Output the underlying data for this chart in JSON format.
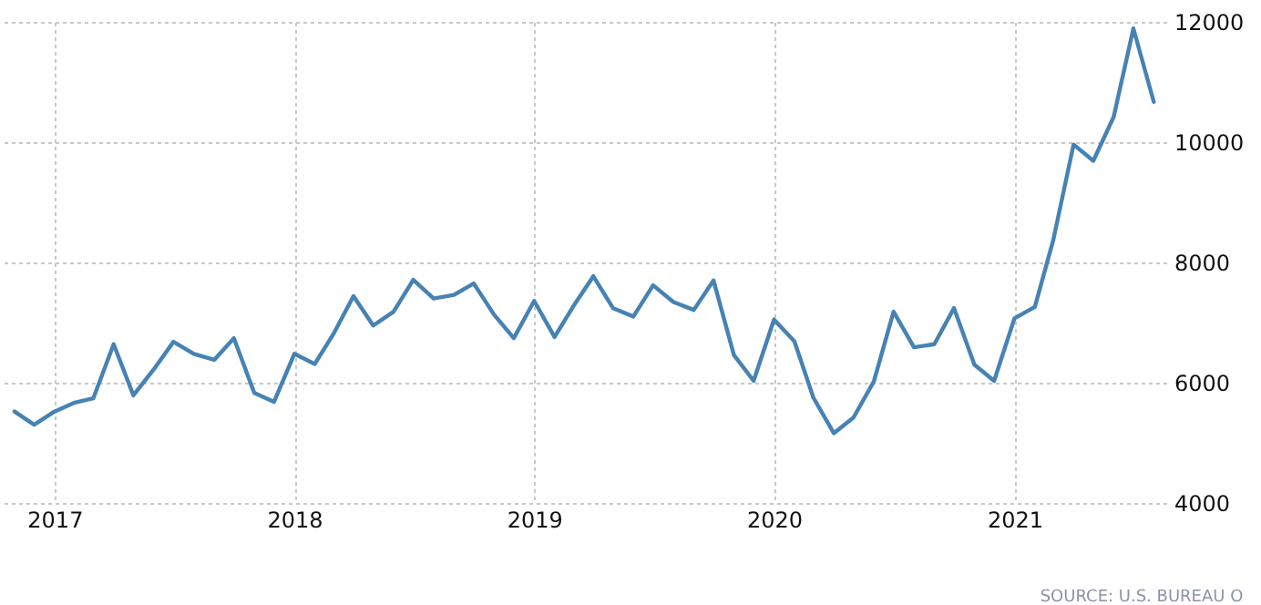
{
  "chart_data": {
    "type": "line",
    "x": [
      "2016-11",
      "2016-12",
      "2017-01",
      "2017-02",
      "2017-03",
      "2017-04",
      "2017-05",
      "2017-06",
      "2017-07",
      "2017-08",
      "2017-09",
      "2017-10",
      "2017-11",
      "2017-12",
      "2018-01",
      "2018-02",
      "2018-03",
      "2018-04",
      "2018-05",
      "2018-06",
      "2018-07",
      "2018-08",
      "2018-09",
      "2018-10",
      "2018-11",
      "2018-12",
      "2019-01",
      "2019-02",
      "2019-03",
      "2019-04",
      "2019-05",
      "2019-06",
      "2019-07",
      "2019-08",
      "2019-09",
      "2019-10",
      "2019-11",
      "2019-12",
      "2020-01",
      "2020-02",
      "2020-03",
      "2020-04",
      "2020-05",
      "2020-06",
      "2020-07",
      "2020-08",
      "2020-09",
      "2020-10",
      "2020-11",
      "2020-12",
      "2021-01",
      "2021-02",
      "2021-03",
      "2021-04",
      "2021-05",
      "2021-06",
      "2021-07",
      "2021-08"
    ],
    "series": [
      {
        "color": "#4682b4",
        "values": [
          5520,
          5300,
          5520,
          5670,
          5740,
          6640,
          5790,
          6220,
          6680,
          6480,
          6380,
          6740,
          5830,
          5680,
          6480,
          6310,
          6800,
          7440,
          6950,
          7180,
          7710,
          7400,
          7460,
          7650,
          7130,
          6740,
          7360,
          6760,
          7260,
          7770,
          7240,
          7100,
          7620,
          7340,
          7210,
          7700,
          6460,
          6030,
          7050,
          6690,
          5750,
          5160,
          5420,
          6020,
          7180,
          6590,
          6640,
          7240,
          6300,
          6030,
          7070,
          7260,
          8370,
          9960,
          9690,
          10420,
          11890,
          10670
        ]
      }
    ],
    "xlim": [
      "2016-10-10",
      "2021-08-20"
    ],
    "xticks": [
      "2017",
      "2018",
      "2019",
      "2020",
      "2021"
    ],
    "ylim": [
      4000,
      12000
    ],
    "yticks": [
      4000,
      6000,
      8000,
      10000,
      12000
    ],
    "grid": true,
    "annotations": [
      "SOURCE: U.S. BUREAU O"
    ]
  }
}
